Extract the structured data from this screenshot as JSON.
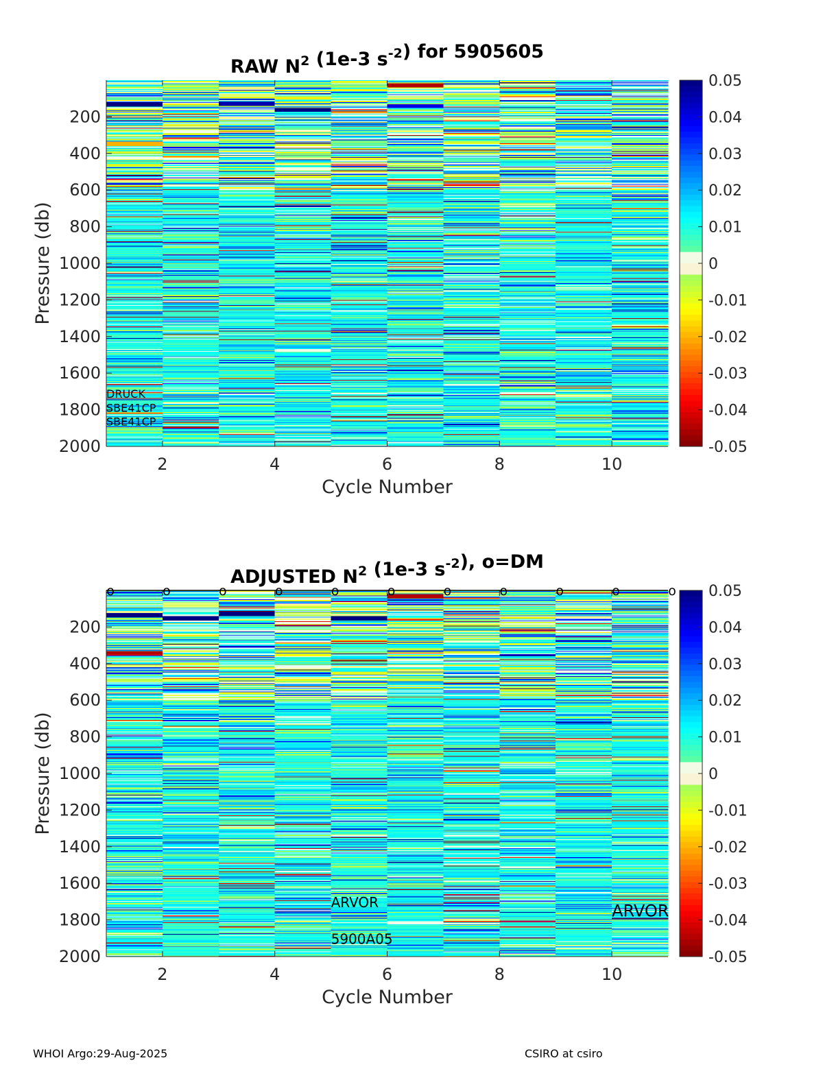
{
  "chart_data": [
    {
      "type": "heatmap",
      "title_main": "RAW N",
      "title_sup": "2",
      "title_units_pre": " (1e-3 s",
      "title_units_sup": "-2",
      "title_post": ") for 5905605",
      "xlabel": "Cycle Number",
      "ylabel": "Pressure (db)",
      "xlim": [
        1,
        11
      ],
      "ylim": [
        0,
        2000
      ],
      "y_reversed": true,
      "xticks": [
        2,
        4,
        6,
        8,
        10
      ],
      "yticks": [
        200,
        400,
        600,
        800,
        1000,
        1200,
        1400,
        1600,
        1800,
        2000
      ],
      "cycles": [
        1,
        2,
        3,
        4,
        5,
        6,
        7,
        8,
        9,
        10
      ],
      "clim": [
        -0.05,
        0.05
      ],
      "colorbar_ticks": [
        "0.05",
        "0.04",
        "0.03",
        "0.02",
        "0.01",
        "0",
        "-0.01",
        "-0.02",
        "-0.03",
        "-0.04",
        "-0.05"
      ],
      "colorbar_values": [
        0.05,
        0.04,
        0.03,
        0.02,
        0.01,
        0,
        -0.01,
        -0.02,
        -0.03,
        -0.04,
        -0.05
      ],
      "colormap": "jet (reversed: red negative, dark blue positive)",
      "dominant_value": 0.008,
      "features": [
        {
          "cycle": 1,
          "pressure": 130,
          "value": 0.05
        },
        {
          "cycle": 1,
          "pressure": 345,
          "value": -0.02
        },
        {
          "cycle": 3,
          "pressure": 125,
          "value": 0.045
        },
        {
          "cycle": 4,
          "pressure": 160,
          "value": 0.05
        },
        {
          "cycle": 6,
          "pressure": 25,
          "value": -0.045
        },
        {
          "cycle": 6,
          "pressure": 140,
          "value": 0.04
        }
      ],
      "annotations": [
        {
          "text": "DRUCK",
          "cycle": 1.0,
          "pressure": 1735
        },
        {
          "text": "SBE41CP",
          "cycle": 1.0,
          "pressure": 1810
        },
        {
          "text": "SBE41CP",
          "cycle": 1.0,
          "pressure": 1885
        }
      ]
    },
    {
      "type": "heatmap",
      "title_main": "ADJUSTED N",
      "title_sup": "2",
      "title_units_pre": " (1e-3 s",
      "title_units_sup": "-2",
      "title_post": "), o=DM",
      "xlabel": "Cycle Number",
      "ylabel": "Pressure (db)",
      "xlim": [
        1,
        11
      ],
      "ylim": [
        0,
        2000
      ],
      "y_reversed": true,
      "xticks": [
        2,
        4,
        6,
        8,
        10
      ],
      "yticks": [
        200,
        400,
        600,
        800,
        1000,
        1200,
        1400,
        1600,
        1800,
        2000
      ],
      "cycles": [
        1,
        2,
        3,
        4,
        5,
        6,
        7,
        8,
        9,
        10
      ],
      "clim": [
        -0.05,
        0.05
      ],
      "colorbar_ticks": [
        "0.05",
        "0.04",
        "0.03",
        "0.02",
        "0.01",
        "0",
        "-0.01",
        "-0.02",
        "-0.03",
        "-0.04",
        "-0.05"
      ],
      "colorbar_values": [
        0.05,
        0.04,
        0.03,
        0.02,
        0.01,
        0,
        -0.01,
        -0.02,
        -0.03,
        -0.04,
        -0.05
      ],
      "colormap": "jet (reversed: red negative, dark blue positive)",
      "dominant_value": 0.008,
      "dm_markers": {
        "symbol": "o",
        "cycles": [
          1,
          2,
          3,
          4,
          5,
          6,
          7,
          8,
          9,
          10,
          11
        ],
        "pressure": 0
      },
      "features": [
        {
          "cycle": 1,
          "pressure": 135,
          "value": 0.05
        },
        {
          "cycle": 1,
          "pressure": 340,
          "value": -0.045
        },
        {
          "cycle": 2,
          "pressure": 150,
          "value": 0.05
        },
        {
          "cycle": 3,
          "pressure": 125,
          "value": 0.05
        },
        {
          "cycle": 5,
          "pressure": 150,
          "value": 0.05
        },
        {
          "cycle": 6,
          "pressure": 30,
          "value": -0.045
        }
      ],
      "annotations": [
        {
          "text": "ARVOR",
          "cycle": 5.0,
          "pressure": 1730,
          "size": "large"
        },
        {
          "text": "5900A05",
          "cycle": 5.0,
          "pressure": 1930,
          "size": "large"
        },
        {
          "text": "ARVOR",
          "cycle": 10.0,
          "pressure": 1780,
          "size": "xlarge"
        }
      ]
    }
  ],
  "footer": {
    "left": "WHOI Argo:29-Aug-2025",
    "right": "CSIRO at csiro"
  }
}
